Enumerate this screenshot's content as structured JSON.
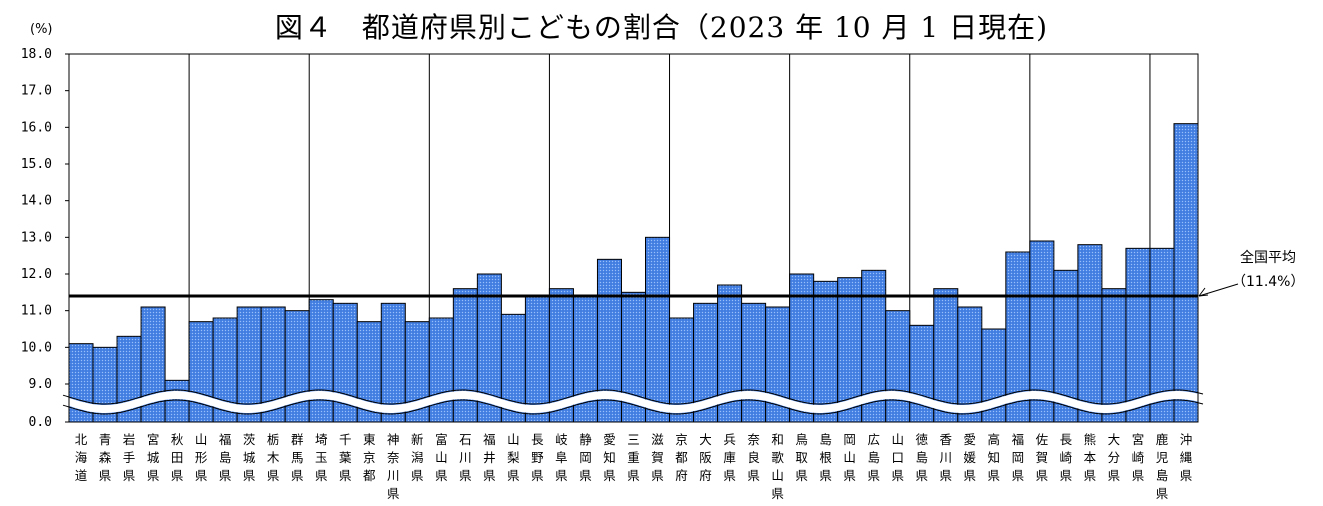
{
  "title": "図４　都道府県別こどもの割合（2023 年 10 月 1 日現在)",
  "chart_data": {
    "type": "bar",
    "unit_label": "(%)",
    "y_ticks": [
      "18.0",
      "17.0",
      "16.0",
      "15.0",
      "14.0",
      "13.0",
      "12.0",
      "11.0",
      "10.0",
      "9.0",
      "0.0"
    ],
    "ylim": [
      0.0,
      18.0
    ],
    "axis_break": "between 0.0 and 9.0",
    "grid": "vertical every 5 categories",
    "categories": [
      "北海道",
      "青森県",
      "岩手県",
      "宮城県",
      "秋田県",
      "山形県",
      "福島県",
      "茨城県",
      "栃木県",
      "群馬県",
      "埼玉県",
      "千葉県",
      "東京都",
      "神奈川県",
      "新潟県",
      "富山県",
      "石川県",
      "福井県",
      "山梨県",
      "長野県",
      "岐阜県",
      "静岡県",
      "愛知県",
      "三重県",
      "滋賀県",
      "京都府",
      "大阪府",
      "兵庫県",
      "奈良県",
      "和歌山県",
      "鳥取県",
      "島根県",
      "岡山県",
      "広島県",
      "山口県",
      "徳島県",
      "香川県",
      "愛媛県",
      "高知県",
      "福岡県",
      "佐賀県",
      "長崎県",
      "熊本県",
      "大分県",
      "宮崎県",
      "鹿児島県",
      "沖縄県"
    ],
    "values": [
      10.1,
      10.0,
      10.3,
      11.1,
      9.1,
      10.7,
      10.8,
      11.1,
      11.1,
      11.0,
      11.3,
      11.2,
      10.7,
      11.2,
      10.7,
      10.8,
      11.6,
      12.0,
      10.9,
      11.4,
      11.6,
      11.4,
      12.4,
      11.5,
      13.0,
      10.8,
      11.2,
      11.7,
      11.2,
      11.1,
      12.0,
      11.8,
      11.9,
      12.1,
      11.0,
      10.6,
      11.6,
      11.1,
      10.5,
      12.6,
      12.9,
      12.1,
      12.8,
      11.6,
      12.7,
      12.7,
      16.1
    ],
    "average": {
      "value": 11.4,
      "label_line1": "全国平均",
      "label_line2": "（11.4%）"
    },
    "bar_color": "#4a86e8"
  }
}
